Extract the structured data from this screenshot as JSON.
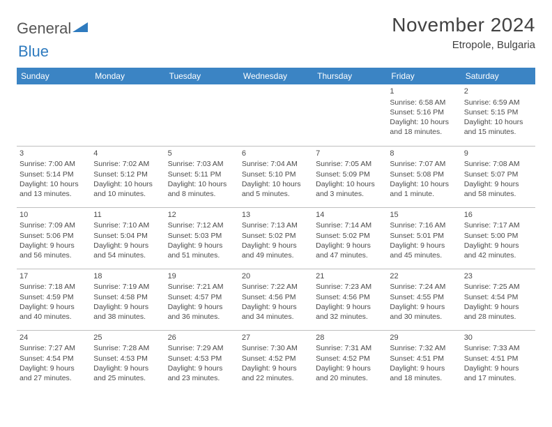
{
  "logo": {
    "text1": "General",
    "text2": "Blue"
  },
  "title": "November 2024",
  "location": "Etropole, Bulgaria",
  "colors": {
    "header_bg": "#3b84c4",
    "header_text": "#ffffff",
    "border": "#bfbfbf",
    "text": "#4a4a4a",
    "title_text": "#414141",
    "logo_blue": "#2f7bbf",
    "logo_gray": "#555555",
    "background": "#ffffff"
  },
  "typography": {
    "title_fontsize": 28,
    "location_fontsize": 15,
    "weekday_fontsize": 12,
    "cell_fontsize": 10.5,
    "logo_fontsize": 22
  },
  "weekdays": [
    "Sunday",
    "Monday",
    "Tuesday",
    "Wednesday",
    "Thursday",
    "Friday",
    "Saturday"
  ],
  "weeks": [
    [
      null,
      null,
      null,
      null,
      null,
      {
        "day": "1",
        "sunrise": "Sunrise: 6:58 AM",
        "sunset": "Sunset: 5:16 PM",
        "daylight": "Daylight: 10 hours and 18 minutes."
      },
      {
        "day": "2",
        "sunrise": "Sunrise: 6:59 AM",
        "sunset": "Sunset: 5:15 PM",
        "daylight": "Daylight: 10 hours and 15 minutes."
      }
    ],
    [
      {
        "day": "3",
        "sunrise": "Sunrise: 7:00 AM",
        "sunset": "Sunset: 5:14 PM",
        "daylight": "Daylight: 10 hours and 13 minutes."
      },
      {
        "day": "4",
        "sunrise": "Sunrise: 7:02 AM",
        "sunset": "Sunset: 5:12 PM",
        "daylight": "Daylight: 10 hours and 10 minutes."
      },
      {
        "day": "5",
        "sunrise": "Sunrise: 7:03 AM",
        "sunset": "Sunset: 5:11 PM",
        "daylight": "Daylight: 10 hours and 8 minutes."
      },
      {
        "day": "6",
        "sunrise": "Sunrise: 7:04 AM",
        "sunset": "Sunset: 5:10 PM",
        "daylight": "Daylight: 10 hours and 5 minutes."
      },
      {
        "day": "7",
        "sunrise": "Sunrise: 7:05 AM",
        "sunset": "Sunset: 5:09 PM",
        "daylight": "Daylight: 10 hours and 3 minutes."
      },
      {
        "day": "8",
        "sunrise": "Sunrise: 7:07 AM",
        "sunset": "Sunset: 5:08 PM",
        "daylight": "Daylight: 10 hours and 1 minute."
      },
      {
        "day": "9",
        "sunrise": "Sunrise: 7:08 AM",
        "sunset": "Sunset: 5:07 PM",
        "daylight": "Daylight: 9 hours and 58 minutes."
      }
    ],
    [
      {
        "day": "10",
        "sunrise": "Sunrise: 7:09 AM",
        "sunset": "Sunset: 5:06 PM",
        "daylight": "Daylight: 9 hours and 56 minutes."
      },
      {
        "day": "11",
        "sunrise": "Sunrise: 7:10 AM",
        "sunset": "Sunset: 5:04 PM",
        "daylight": "Daylight: 9 hours and 54 minutes."
      },
      {
        "day": "12",
        "sunrise": "Sunrise: 7:12 AM",
        "sunset": "Sunset: 5:03 PM",
        "daylight": "Daylight: 9 hours and 51 minutes."
      },
      {
        "day": "13",
        "sunrise": "Sunrise: 7:13 AM",
        "sunset": "Sunset: 5:02 PM",
        "daylight": "Daylight: 9 hours and 49 minutes."
      },
      {
        "day": "14",
        "sunrise": "Sunrise: 7:14 AM",
        "sunset": "Sunset: 5:02 PM",
        "daylight": "Daylight: 9 hours and 47 minutes."
      },
      {
        "day": "15",
        "sunrise": "Sunrise: 7:16 AM",
        "sunset": "Sunset: 5:01 PM",
        "daylight": "Daylight: 9 hours and 45 minutes."
      },
      {
        "day": "16",
        "sunrise": "Sunrise: 7:17 AM",
        "sunset": "Sunset: 5:00 PM",
        "daylight": "Daylight: 9 hours and 42 minutes."
      }
    ],
    [
      {
        "day": "17",
        "sunrise": "Sunrise: 7:18 AM",
        "sunset": "Sunset: 4:59 PM",
        "daylight": "Daylight: 9 hours and 40 minutes."
      },
      {
        "day": "18",
        "sunrise": "Sunrise: 7:19 AM",
        "sunset": "Sunset: 4:58 PM",
        "daylight": "Daylight: 9 hours and 38 minutes."
      },
      {
        "day": "19",
        "sunrise": "Sunrise: 7:21 AM",
        "sunset": "Sunset: 4:57 PM",
        "daylight": "Daylight: 9 hours and 36 minutes."
      },
      {
        "day": "20",
        "sunrise": "Sunrise: 7:22 AM",
        "sunset": "Sunset: 4:56 PM",
        "daylight": "Daylight: 9 hours and 34 minutes."
      },
      {
        "day": "21",
        "sunrise": "Sunrise: 7:23 AM",
        "sunset": "Sunset: 4:56 PM",
        "daylight": "Daylight: 9 hours and 32 minutes."
      },
      {
        "day": "22",
        "sunrise": "Sunrise: 7:24 AM",
        "sunset": "Sunset: 4:55 PM",
        "daylight": "Daylight: 9 hours and 30 minutes."
      },
      {
        "day": "23",
        "sunrise": "Sunrise: 7:25 AM",
        "sunset": "Sunset: 4:54 PM",
        "daylight": "Daylight: 9 hours and 28 minutes."
      }
    ],
    [
      {
        "day": "24",
        "sunrise": "Sunrise: 7:27 AM",
        "sunset": "Sunset: 4:54 PM",
        "daylight": "Daylight: 9 hours and 27 minutes."
      },
      {
        "day": "25",
        "sunrise": "Sunrise: 7:28 AM",
        "sunset": "Sunset: 4:53 PM",
        "daylight": "Daylight: 9 hours and 25 minutes."
      },
      {
        "day": "26",
        "sunrise": "Sunrise: 7:29 AM",
        "sunset": "Sunset: 4:53 PM",
        "daylight": "Daylight: 9 hours and 23 minutes."
      },
      {
        "day": "27",
        "sunrise": "Sunrise: 7:30 AM",
        "sunset": "Sunset: 4:52 PM",
        "daylight": "Daylight: 9 hours and 22 minutes."
      },
      {
        "day": "28",
        "sunrise": "Sunrise: 7:31 AM",
        "sunset": "Sunset: 4:52 PM",
        "daylight": "Daylight: 9 hours and 20 minutes."
      },
      {
        "day": "29",
        "sunrise": "Sunrise: 7:32 AM",
        "sunset": "Sunset: 4:51 PM",
        "daylight": "Daylight: 9 hours and 18 minutes."
      },
      {
        "day": "30",
        "sunrise": "Sunrise: 7:33 AM",
        "sunset": "Sunset: 4:51 PM",
        "daylight": "Daylight: 9 hours and 17 minutes."
      }
    ]
  ]
}
